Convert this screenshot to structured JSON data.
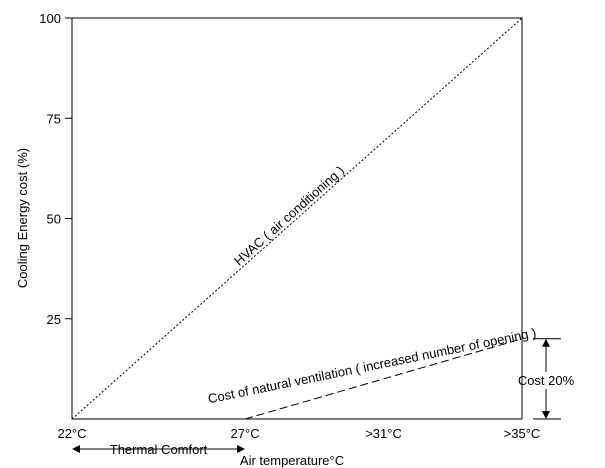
{
  "chart_data": {
    "type": "line",
    "xlabel": "Air temperature°C",
    "ylabel": "Cooling Energy cost (%)",
    "ylim": [
      0,
      100
    ],
    "y_ticks": [
      25,
      50,
      75,
      100
    ],
    "x_ticks": [
      {
        "value": 22,
        "label": "22°C"
      },
      {
        "value": 27,
        "label": "27°C"
      },
      {
        "value": 31,
        "label": ">31°C"
      },
      {
        "value": 35,
        "label": ">35°C"
      }
    ],
    "xlim": [
      22,
      35
    ],
    "grid": false,
    "series": [
      {
        "name": "HVAC ( air conditioning )",
        "style": "dotted",
        "x": [
          22,
          35
        ],
        "y": [
          0,
          100
        ]
      },
      {
        "name": "Cost of natural ventilation ( increased number of opening )",
        "style": "dashed",
        "x": [
          27,
          35
        ],
        "y": [
          0,
          20
        ]
      }
    ],
    "annotations": [
      {
        "text": "Thermal Comfort",
        "type": "range-arrow",
        "x_from": 22,
        "x_to": 27
      },
      {
        "text": "Cost 20%",
        "type": "dimension-arrow",
        "x": 35,
        "y_from": 0,
        "y_to": 20
      }
    ]
  }
}
